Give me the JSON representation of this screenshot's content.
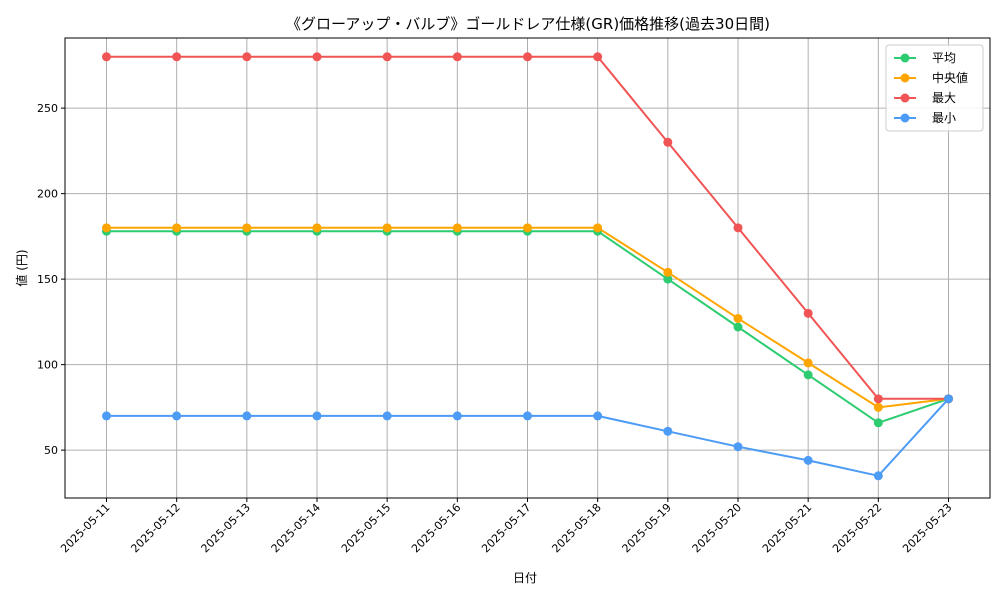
{
  "chart_data": {
    "type": "line",
    "title": "《グローアップ・バルブ》ゴールドレア仕様(GR)価格推移(過去30日間)",
    "xlabel": "日付",
    "ylabel": "値 (円)",
    "categories": [
      "2025-05-11",
      "2025-05-12",
      "2025-05-13",
      "2025-05-14",
      "2025-05-15",
      "2025-05-16",
      "2025-05-17",
      "2025-05-18",
      "2025-05-19",
      "2025-05-20",
      "2025-05-21",
      "2025-05-22",
      "2025-05-23"
    ],
    "ylim": [
      22,
      291
    ],
    "yticks": [
      50,
      100,
      150,
      200,
      250
    ],
    "grid": true,
    "legend_position": "top-right",
    "series": [
      {
        "name": "平均",
        "color": "#2ecc71",
        "values": [
          178,
          178,
          178,
          178,
          178,
          178,
          178,
          178,
          150,
          122,
          94,
          66,
          80
        ]
      },
      {
        "name": "中央値",
        "color": "#ffa500",
        "values": [
          180,
          180,
          180,
          180,
          180,
          180,
          180,
          180,
          154,
          127,
          101,
          75,
          80
        ]
      },
      {
        "name": "最大",
        "color": "#f05454",
        "values": [
          280,
          280,
          280,
          280,
          280,
          280,
          280,
          280,
          230,
          180,
          130,
          80,
          80
        ]
      },
      {
        "name": "最小",
        "color": "#4c9bf5",
        "values": [
          70,
          70,
          70,
          70,
          70,
          70,
          70,
          70,
          61,
          52,
          44,
          35,
          80
        ]
      }
    ]
  }
}
